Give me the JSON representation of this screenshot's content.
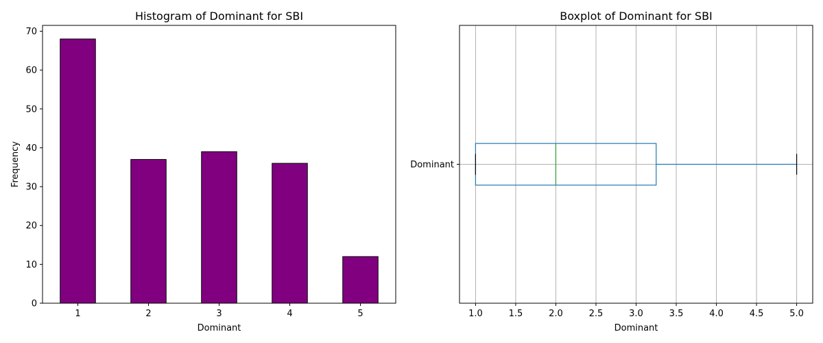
{
  "chart_data": [
    {
      "type": "bar",
      "title": "Histogram of Dominant for SBI",
      "xlabel": "Dominant",
      "ylabel": "Frequency",
      "categories": [
        "1",
        "2",
        "3",
        "4",
        "5"
      ],
      "values": [
        68,
        37,
        39,
        36,
        12
      ],
      "ylim": [
        0,
        71.5
      ],
      "yticks": [
        "0",
        "10",
        "20",
        "30",
        "40",
        "50",
        "60",
        "70"
      ],
      "bar_color": "#800080",
      "edge_color": "#000000",
      "grid": false
    },
    {
      "type": "boxplot",
      "title": "Boxplot of Dominant for SBI",
      "xlabel": "Dominant",
      "category": "Dominant",
      "whisker_low": 1.0,
      "q1": 1.0,
      "median": 2.0,
      "q3": 3.25,
      "whisker_high": 5.0,
      "xlim": [
        0.8,
        5.2
      ],
      "xticks": [
        "1.0",
        "1.5",
        "2.0",
        "2.5",
        "3.0",
        "3.5",
        "4.0",
        "4.5",
        "5.0"
      ],
      "box_color": "#1f77b4",
      "median_color": "#2ca02c",
      "cap_color": "#000000",
      "grid": true
    }
  ]
}
